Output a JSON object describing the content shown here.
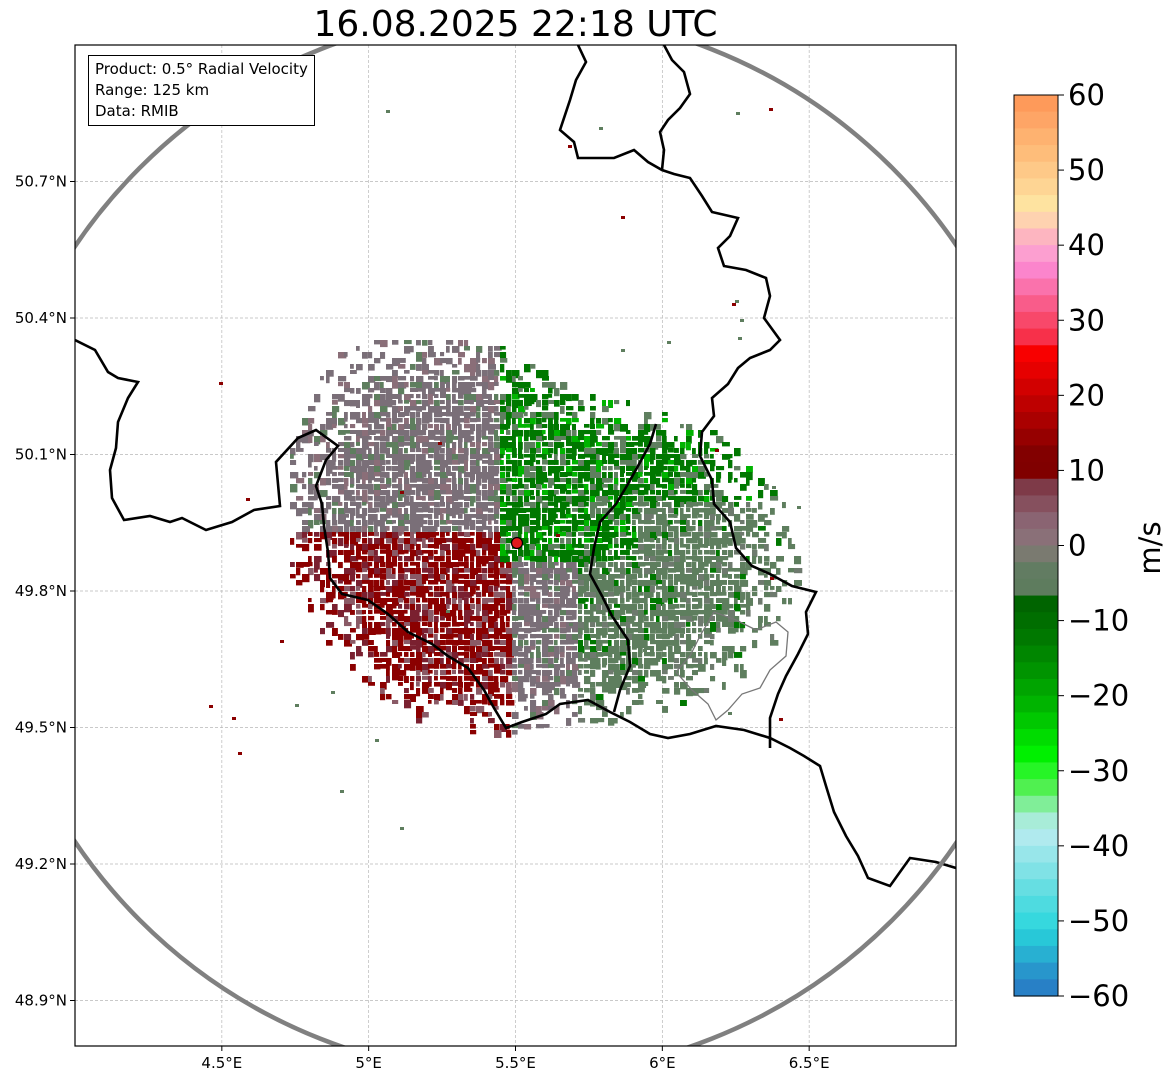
{
  "title": "16.08.2025 22:18 UTC",
  "info_box": {
    "product": "Product: 0.5° Radial Velocity",
    "range": "Range: 125 km",
    "data": "Data: RMIB"
  },
  "axes": {
    "x_ticks": [
      "4.5°E",
      "5°E",
      "5.5°E",
      "6°E",
      "6.5°E"
    ],
    "x_values": [
      4.5,
      5.0,
      5.5,
      6.0,
      6.5
    ],
    "y_ticks": [
      "50.7°N",
      "50.4°N",
      "50.1°N",
      "49.8°N",
      "49.5°N",
      "49.2°N",
      "48.9°N"
    ],
    "y_values": [
      50.7,
      50.4,
      50.1,
      49.8,
      49.5,
      49.2,
      48.9
    ],
    "x_range": [
      4.0,
      7.0
    ],
    "y_range": [
      48.8,
      51.0
    ],
    "grid": true
  },
  "radar": {
    "site_lon": 5.505,
    "site_lat": 49.915,
    "range_km": 125
  },
  "colorbar": {
    "label": "m/s",
    "ticks": [
      "60",
      "50",
      "40",
      "30",
      "20",
      "10",
      "0",
      "−10",
      "−20",
      "−30",
      "−40",
      "−50",
      "−60"
    ],
    "vmin": -60,
    "vmax": 60
  },
  "colors": {
    "range_ring": "#808080",
    "border": "#000000",
    "site_marker": "#e31a1c",
    "inbound_green": "#007800",
    "outbound_red": "#8b0000",
    "near_zero_grey": "#7a6f78"
  }
}
